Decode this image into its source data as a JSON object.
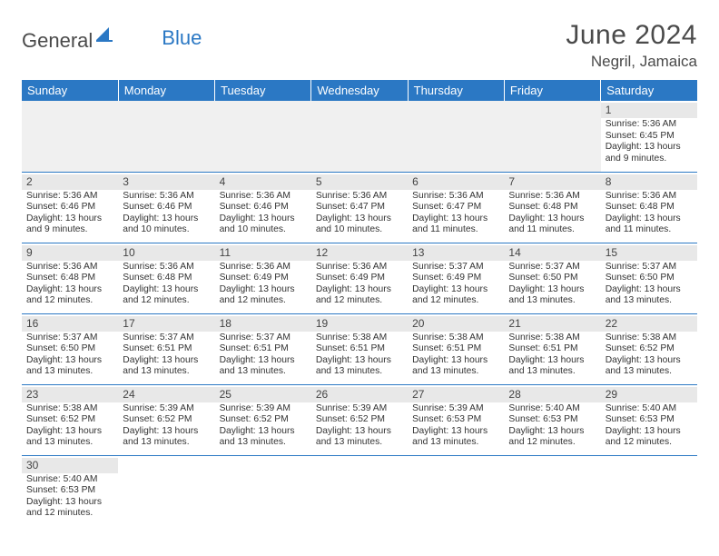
{
  "logo": {
    "dark": "General",
    "blue": "Blue"
  },
  "title": "June 2024",
  "location": "Negril, Jamaica",
  "colors": {
    "accent": "#2b78c4",
    "header_bg": "#2b78c4",
    "header_fg": "#ffffff",
    "daynum_bg": "#e8e8e8",
    "empty_bg": "#f0f0f0",
    "border": "#2b78c4",
    "text": "#333333",
    "title": "#4a4a4a"
  },
  "weekdays": [
    "Sunday",
    "Monday",
    "Tuesday",
    "Wednesday",
    "Thursday",
    "Friday",
    "Saturday"
  ],
  "lead_blanks": 6,
  "days": [
    {
      "n": 1,
      "sunrise": "5:36 AM",
      "sunset": "6:45 PM",
      "daylight": "13 hours and 9 minutes."
    },
    {
      "n": 2,
      "sunrise": "5:36 AM",
      "sunset": "6:46 PM",
      "daylight": "13 hours and 9 minutes."
    },
    {
      "n": 3,
      "sunrise": "5:36 AM",
      "sunset": "6:46 PM",
      "daylight": "13 hours and 10 minutes."
    },
    {
      "n": 4,
      "sunrise": "5:36 AM",
      "sunset": "6:46 PM",
      "daylight": "13 hours and 10 minutes."
    },
    {
      "n": 5,
      "sunrise": "5:36 AM",
      "sunset": "6:47 PM",
      "daylight": "13 hours and 10 minutes."
    },
    {
      "n": 6,
      "sunrise": "5:36 AM",
      "sunset": "6:47 PM",
      "daylight": "13 hours and 11 minutes."
    },
    {
      "n": 7,
      "sunrise": "5:36 AM",
      "sunset": "6:48 PM",
      "daylight": "13 hours and 11 minutes."
    },
    {
      "n": 8,
      "sunrise": "5:36 AM",
      "sunset": "6:48 PM",
      "daylight": "13 hours and 11 minutes."
    },
    {
      "n": 9,
      "sunrise": "5:36 AM",
      "sunset": "6:48 PM",
      "daylight": "13 hours and 12 minutes."
    },
    {
      "n": 10,
      "sunrise": "5:36 AM",
      "sunset": "6:48 PM",
      "daylight": "13 hours and 12 minutes."
    },
    {
      "n": 11,
      "sunrise": "5:36 AM",
      "sunset": "6:49 PM",
      "daylight": "13 hours and 12 minutes."
    },
    {
      "n": 12,
      "sunrise": "5:36 AM",
      "sunset": "6:49 PM",
      "daylight": "13 hours and 12 minutes."
    },
    {
      "n": 13,
      "sunrise": "5:37 AM",
      "sunset": "6:49 PM",
      "daylight": "13 hours and 12 minutes."
    },
    {
      "n": 14,
      "sunrise": "5:37 AM",
      "sunset": "6:50 PM",
      "daylight": "13 hours and 13 minutes."
    },
    {
      "n": 15,
      "sunrise": "5:37 AM",
      "sunset": "6:50 PM",
      "daylight": "13 hours and 13 minutes."
    },
    {
      "n": 16,
      "sunrise": "5:37 AM",
      "sunset": "6:50 PM",
      "daylight": "13 hours and 13 minutes."
    },
    {
      "n": 17,
      "sunrise": "5:37 AM",
      "sunset": "6:51 PM",
      "daylight": "13 hours and 13 minutes."
    },
    {
      "n": 18,
      "sunrise": "5:37 AM",
      "sunset": "6:51 PM",
      "daylight": "13 hours and 13 minutes."
    },
    {
      "n": 19,
      "sunrise": "5:38 AM",
      "sunset": "6:51 PM",
      "daylight": "13 hours and 13 minutes."
    },
    {
      "n": 20,
      "sunrise": "5:38 AM",
      "sunset": "6:51 PM",
      "daylight": "13 hours and 13 minutes."
    },
    {
      "n": 21,
      "sunrise": "5:38 AM",
      "sunset": "6:51 PM",
      "daylight": "13 hours and 13 minutes."
    },
    {
      "n": 22,
      "sunrise": "5:38 AM",
      "sunset": "6:52 PM",
      "daylight": "13 hours and 13 minutes."
    },
    {
      "n": 23,
      "sunrise": "5:38 AM",
      "sunset": "6:52 PM",
      "daylight": "13 hours and 13 minutes."
    },
    {
      "n": 24,
      "sunrise": "5:39 AM",
      "sunset": "6:52 PM",
      "daylight": "13 hours and 13 minutes."
    },
    {
      "n": 25,
      "sunrise": "5:39 AM",
      "sunset": "6:52 PM",
      "daylight": "13 hours and 13 minutes."
    },
    {
      "n": 26,
      "sunrise": "5:39 AM",
      "sunset": "6:52 PM",
      "daylight": "13 hours and 13 minutes."
    },
    {
      "n": 27,
      "sunrise": "5:39 AM",
      "sunset": "6:53 PM",
      "daylight": "13 hours and 13 minutes."
    },
    {
      "n": 28,
      "sunrise": "5:40 AM",
      "sunset": "6:53 PM",
      "daylight": "13 hours and 12 minutes."
    },
    {
      "n": 29,
      "sunrise": "5:40 AM",
      "sunset": "6:53 PM",
      "daylight": "13 hours and 12 minutes."
    },
    {
      "n": 30,
      "sunrise": "5:40 AM",
      "sunset": "6:53 PM",
      "daylight": "13 hours and 12 minutes."
    }
  ],
  "labels": {
    "sunrise": "Sunrise:",
    "sunset": "Sunset:",
    "daylight": "Daylight:"
  }
}
